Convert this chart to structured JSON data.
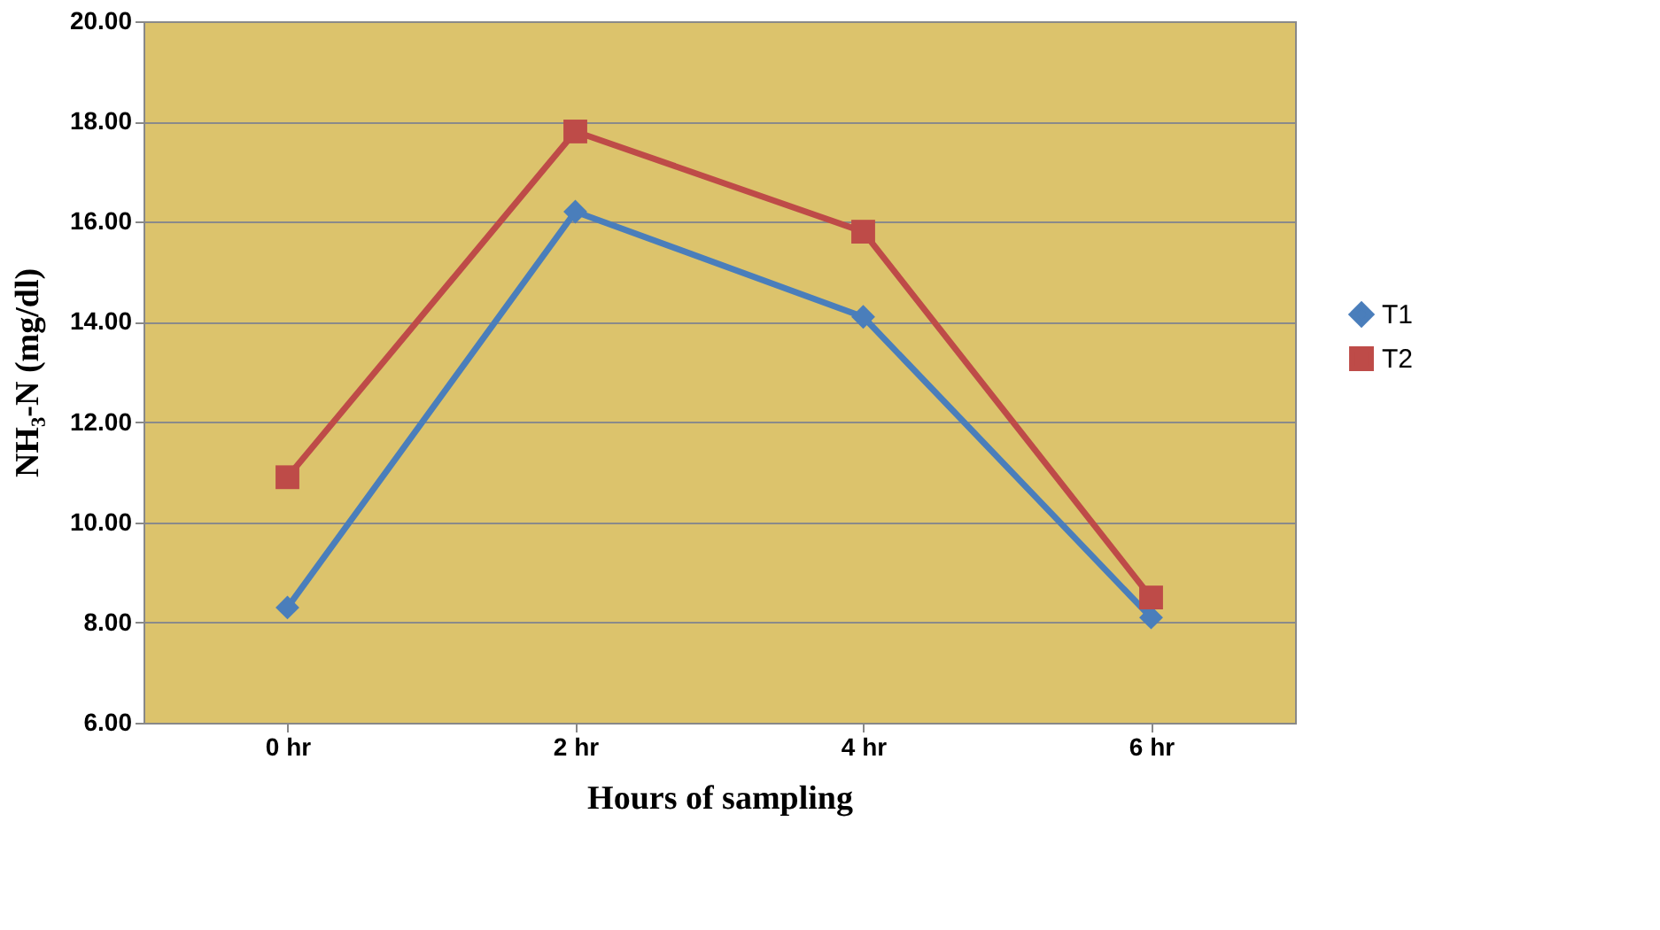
{
  "chart_data": {
    "type": "line",
    "xlabel": "Hours of sampling",
    "ylabel": "NH₃-N (mg/dl)",
    "categories": [
      "0 hr",
      "2 hr",
      "4 hr",
      "6 hr"
    ],
    "series": [
      {
        "name": "T1",
        "color": "#4a7ebb",
        "marker": "diamond",
        "values": [
          8.3,
          16.2,
          14.1,
          8.1
        ]
      },
      {
        "name": "T2",
        "color": "#be4b48",
        "marker": "square",
        "values": [
          10.9,
          17.8,
          15.8,
          8.5
        ]
      }
    ],
    "ylim": [
      6,
      20
    ],
    "yticks": [
      {
        "value": 6,
        "label": "6.00"
      },
      {
        "value": 8,
        "label": "8.00"
      },
      {
        "value": 10,
        "label": "10.00"
      },
      {
        "value": 12,
        "label": "12.00"
      },
      {
        "value": 14,
        "label": "14.00"
      },
      {
        "value": 16,
        "label": "16.00"
      },
      {
        "value": 18,
        "label": "18.00"
      },
      {
        "value": 20,
        "label": "20.00"
      }
    ],
    "grid": "y",
    "legend": "right",
    "line_style": "solid"
  }
}
